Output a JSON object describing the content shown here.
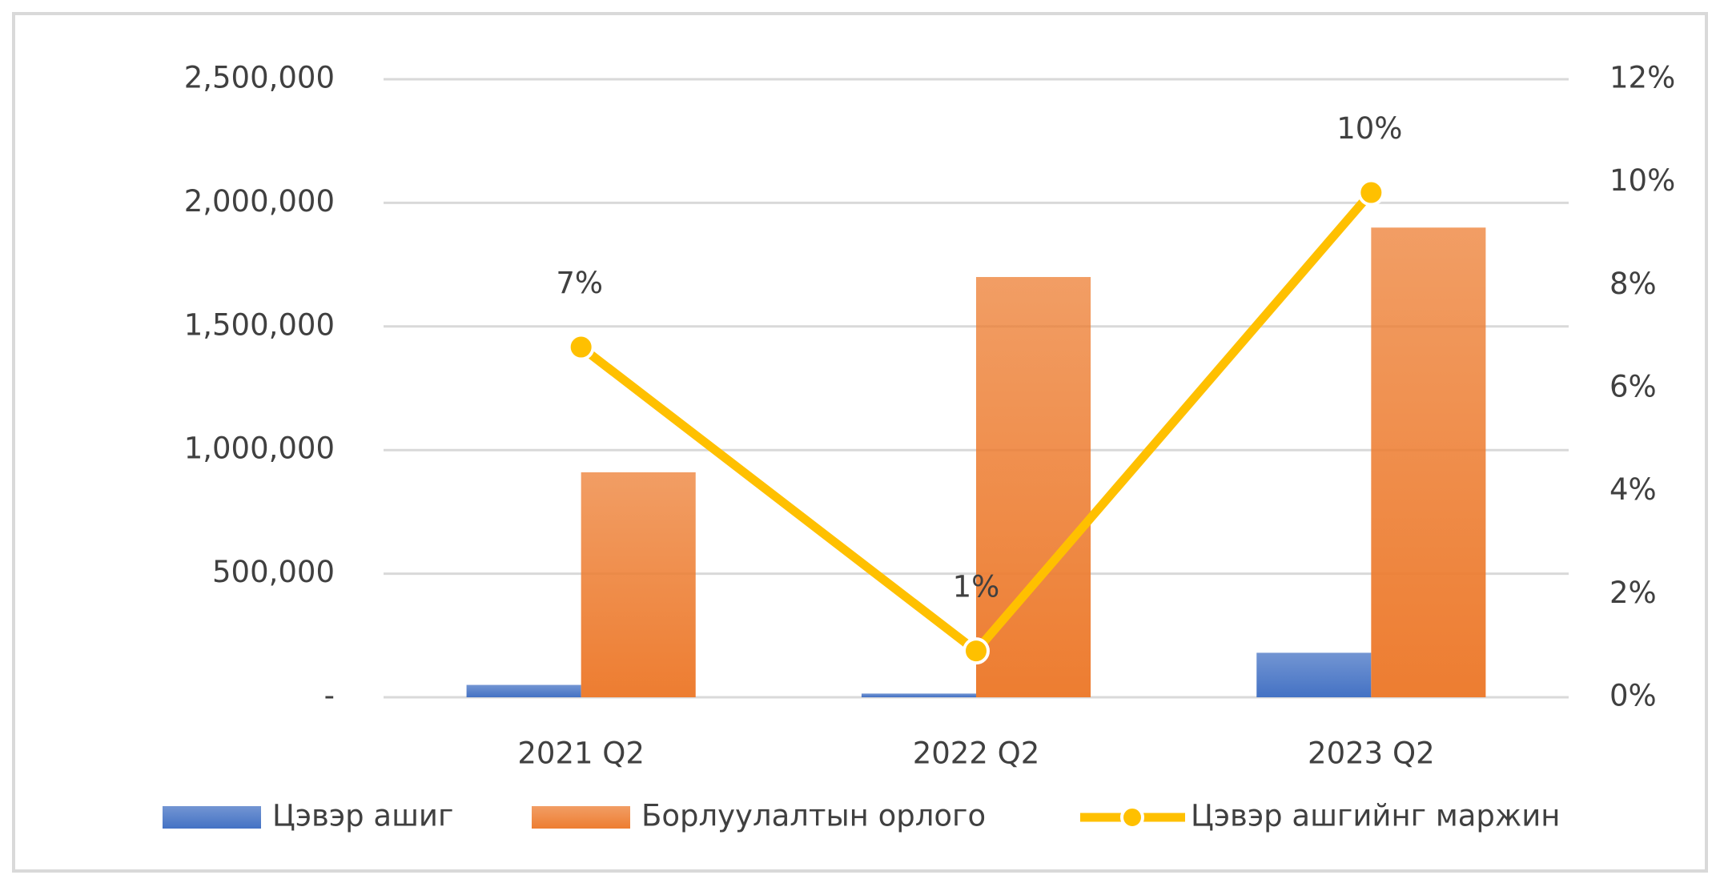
{
  "chart_data": {
    "type": "bar",
    "categories": [
      "2021 Q2",
      "2022 Q2",
      "2023 Q2"
    ],
    "series": [
      {
        "name": "Цэвэр ашиг",
        "color": "#4472c4",
        "values": [
          50000,
          15000,
          180000
        ],
        "axis": "y"
      },
      {
        "name": "Борлуулалтын орлого",
        "color": "#ed7d31",
        "values": [
          910000,
          1700000,
          1900000
        ],
        "axis": "y"
      },
      {
        "name": "Цэвэр ашгийнг маржин",
        "type": "line",
        "color": "#ffc000",
        "values": [
          6.8,
          0.9,
          9.8
        ],
        "value_labels": [
          "7%",
          "1%",
          "10%"
        ],
        "axis": "y2"
      }
    ],
    "ylim": [
      0,
      2500000
    ],
    "yticks": [
      {
        "value": 0,
        "label": "-"
      },
      {
        "value": 500000,
        "label": "500,000"
      },
      {
        "value": 1000000,
        "label": "1,000,000"
      },
      {
        "value": 1500000,
        "label": "1,500,000"
      },
      {
        "value": 2000000,
        "label": "2,000,000"
      },
      {
        "value": 2500000,
        "label": "2,500,000"
      }
    ],
    "y2lim": [
      0,
      12
    ],
    "y2ticks": [
      {
        "value": 0,
        "label": "0%"
      },
      {
        "value": 2,
        "label": "2%"
      },
      {
        "value": 4,
        "label": "4%"
      },
      {
        "value": 6,
        "label": "6%"
      },
      {
        "value": 8,
        "label": "8%"
      },
      {
        "value": 10,
        "label": "10%"
      },
      {
        "value": 12,
        "label": "12%"
      }
    ],
    "grid": true,
    "legend": "bottom"
  }
}
